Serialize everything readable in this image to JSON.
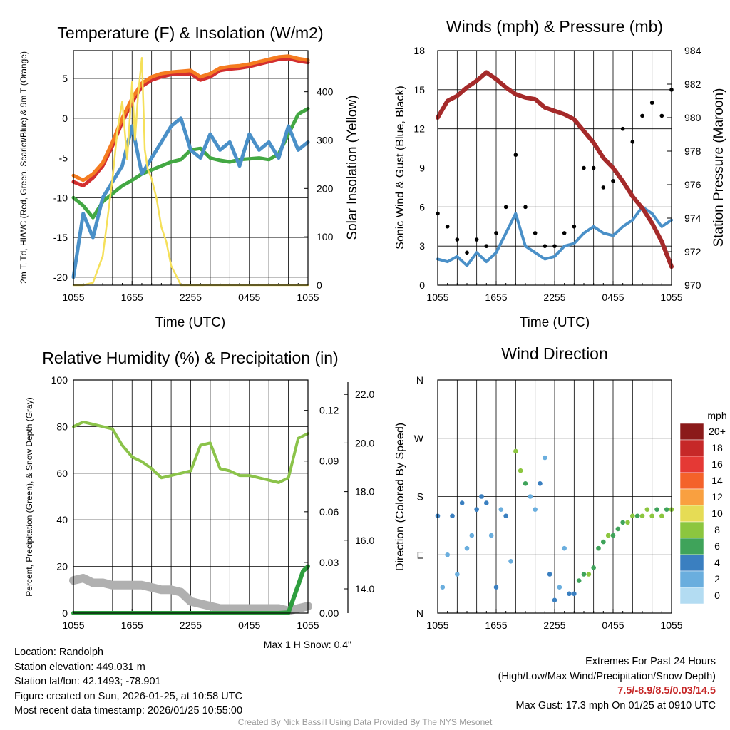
{
  "chart_data": [
    {
      "type": "line",
      "title": "Temperature (F) & Insolation (W/m2)",
      "xlabel": "Time (UTC)",
      "ylabel": "2m T, Td, HI/WC (Red, Green, Scarlet/Blue) & 9m T (Orange)",
      "ylabel_right": "Solar Insolation (Yellow)",
      "x_ticks": [
        "1055",
        "1655",
        "2255",
        "0455",
        "1055"
      ],
      "ylim": [
        -21,
        8.5
      ],
      "y_ticks": [
        -20,
        -15,
        -10,
        -5,
        0,
        5
      ],
      "ylim_right": [
        0,
        485
      ],
      "y_ticks_right": [
        0,
        100,
        200,
        300,
        400
      ],
      "series": [
        {
          "name": "2m Temperature",
          "color": "#d32f2f",
          "x": [
            0,
            1,
            2,
            3,
            4,
            5,
            6,
            7,
            8,
            9,
            10,
            11,
            12,
            13,
            14,
            15,
            16,
            17,
            18,
            19,
            20,
            21,
            22,
            23,
            24
          ],
          "values": [
            -8,
            -8.5,
            -7.5,
            -6,
            -3.5,
            -0.5,
            2,
            4,
            4.8,
            5.2,
            5.5,
            5.5,
            5.6,
            4.8,
            5.2,
            6,
            6.2,
            6.3,
            6.5,
            6.8,
            7.1,
            7.4,
            7.5,
            7.2,
            7.0
          ]
        },
        {
          "name": "9m Temperature",
          "color": "#f57c20",
          "x": [
            0,
            1,
            2,
            3,
            4,
            5,
            6,
            7,
            8,
            9,
            10,
            11,
            12,
            13,
            14,
            15,
            16,
            17,
            18,
            19,
            20,
            21,
            22,
            23,
            24
          ],
          "values": [
            -7.2,
            -7.8,
            -7,
            -5.6,
            -3,
            0,
            2.5,
            4.4,
            5.2,
            5.6,
            5.8,
            5.9,
            6,
            5.2,
            5.6,
            6.3,
            6.5,
            6.6,
            6.8,
            7.1,
            7.4,
            7.7,
            7.8,
            7.5,
            7.3
          ]
        },
        {
          "name": "2m Dewpoint",
          "color": "#43a843",
          "x": [
            0,
            1,
            2,
            3,
            4,
            5,
            6,
            7,
            8,
            9,
            10,
            11,
            12,
            13,
            14,
            15,
            16,
            17,
            18,
            19,
            20,
            21,
            22,
            23,
            24
          ],
          "values": [
            -10,
            -11,
            -12.5,
            -10.5,
            -9.5,
            -8.5,
            -7.8,
            -7,
            -6.5,
            -6,
            -5.5,
            -5.2,
            -4,
            -3.8,
            -5,
            -5.3,
            -5.5,
            -5.2,
            -5.1,
            -5.0,
            -5.2,
            -4.5,
            -2,
            0.5,
            1.2
          ]
        },
        {
          "name": "Wind Chill",
          "color": "#4a90c8",
          "x": [
            0,
            1,
            2,
            3,
            4,
            5,
            6,
            7,
            8,
            9,
            10,
            11,
            12,
            13,
            14,
            15,
            16,
            17,
            18,
            19,
            20,
            21,
            22,
            23,
            24
          ],
          "values": [
            -20,
            -12,
            -15,
            -10,
            -8,
            -6,
            -1,
            -7,
            -5,
            -3,
            -1,
            0,
            -4,
            -5,
            -2,
            -4,
            -3,
            -6,
            -2,
            -4,
            -3,
            -5,
            -1,
            -4,
            -3
          ]
        },
        {
          "name": "Solar Insolation",
          "color": "#f5e05a",
          "axis": "right",
          "x": [
            0,
            1,
            2,
            3,
            3.5,
            4,
            4.5,
            5,
            5.5,
            6,
            6.3,
            6.6,
            7,
            7.3,
            7.6,
            8,
            8.5,
            9,
            9.5,
            10,
            11,
            12,
            13,
            24
          ],
          "values": [
            0,
            0,
            5,
            60,
            140,
            220,
            320,
            380,
            260,
            420,
            300,
            390,
            470,
            280,
            240,
            220,
            180,
            120,
            90,
            40,
            0,
            0,
            0,
            0
          ]
        }
      ]
    },
    {
      "type": "scatter",
      "title": "Winds (mph) & Pressure (mb)",
      "xlabel": "Time (UTC)",
      "ylabel": "Sonic Wind & Gust (Blue, Black)",
      "ylabel_right": "Station Pressure (Maroon)",
      "x_ticks": [
        "1055",
        "1655",
        "2255",
        "0455",
        "1055"
      ],
      "ylim": [
        0,
        18
      ],
      "y_ticks": [
        0,
        3,
        6,
        9,
        12,
        15,
        18
      ],
      "ylim_right": [
        970,
        984
      ],
      "y_ticks_right": [
        970,
        972,
        974,
        976,
        978,
        980,
        982,
        984
      ],
      "series": [
        {
          "name": "Station Pressure",
          "color": "#a52a2a",
          "axis": "right",
          "x": [
            0,
            1,
            2,
            3,
            4,
            5,
            6,
            7,
            8,
            9,
            10,
            11,
            12,
            13,
            14,
            15,
            16,
            17,
            18,
            19,
            20,
            21,
            22,
            23,
            24
          ],
          "values": [
            980,
            981,
            981.3,
            981.8,
            982.2,
            982.7,
            982.3,
            981.8,
            981.4,
            981.2,
            981.1,
            980.6,
            980.4,
            980.2,
            979.9,
            979.2,
            978.5,
            977.6,
            977,
            976.2,
            975.3,
            974.6,
            973.7,
            972.6,
            971.1
          ]
        },
        {
          "name": "Sonic Wind",
          "color": "#4a90c8",
          "x": [
            0,
            1,
            2,
            3,
            4,
            5,
            6,
            7,
            8,
            9,
            10,
            11,
            12,
            13,
            14,
            15,
            16,
            17,
            18,
            19,
            20,
            21,
            22,
            23,
            24
          ],
          "values": [
            2,
            1.8,
            2.2,
            1.5,
            2.5,
            1.8,
            2.5,
            4,
            5.5,
            3,
            2.5,
            2,
            2.2,
            3,
            3.2,
            4,
            4.5,
            4,
            3.8,
            4.5,
            5,
            6,
            5.5,
            4.5,
            5
          ]
        },
        {
          "name": "Gust",
          "color": "#000000",
          "x": [
            0,
            1,
            2,
            3,
            4,
            5,
            6,
            7,
            8,
            9,
            10,
            11,
            12,
            13,
            14,
            15,
            16,
            17,
            18,
            19,
            20,
            21,
            22,
            23,
            24
          ],
          "values": [
            5.5,
            4.5,
            3.5,
            2.5,
            3.5,
            3,
            4,
            6,
            10,
            6,
            4,
            3,
            3,
            4,
            4.5,
            9,
            9,
            7.5,
            8,
            12,
            11,
            13,
            14,
            13,
            15
          ]
        }
      ]
    },
    {
      "type": "line",
      "title": "Relative Humidity (%) & Precipitation (in)",
      "xlabel": "",
      "ylabel": "Percent, Precipitation (Green), & Snow Depth (Gray)",
      "x_ticks": [
        "1055",
        "1655",
        "2255",
        "0455",
        "1055"
      ],
      "ylim": [
        0,
        100
      ],
      "y_ticks": [
        0,
        20,
        40,
        60,
        80,
        100
      ],
      "precip_ticks": [
        "0.00",
        "0.03",
        "0.06",
        "0.09",
        "0.12"
      ],
      "snow_ticks": [
        "14.0",
        "16.0",
        "18.0",
        "20.0",
        "22.0"
      ],
      "snow_note": "Max 1 H Snow: 0.4\"",
      "series": [
        {
          "name": "Relative Humidity",
          "color": "#8bc34a",
          "x": [
            0,
            1,
            2,
            3,
            4,
            5,
            6,
            7,
            8,
            9,
            10,
            11,
            12,
            13,
            14,
            15,
            16,
            17,
            18,
            19,
            20,
            21,
            22,
            23,
            24
          ],
          "values": [
            80,
            82,
            81,
            80,
            79,
            72,
            67,
            65,
            62,
            58,
            59,
            60,
            61,
            72,
            73,
            62,
            61,
            59,
            59,
            58,
            57,
            56,
            58,
            75,
            77
          ]
        },
        {
          "name": "Precipitation",
          "color": "#2e9e3e",
          "x": [
            0,
            20,
            21,
            22,
            23,
            23.5,
            24
          ],
          "values": [
            0,
            0,
            0,
            0.2,
            12,
            18,
            20
          ]
        },
        {
          "name": "Snow Depth",
          "color": "#b0b0b0",
          "x": [
            0,
            1,
            2,
            3,
            4,
            5,
            6,
            7,
            8,
            9,
            10,
            11,
            12,
            13,
            14,
            15,
            16,
            17,
            18,
            19,
            20,
            21,
            22,
            23,
            24
          ],
          "values": [
            14,
            15,
            13,
            13,
            12,
            12,
            12,
            12,
            11,
            10,
            10,
            9,
            5,
            4,
            3,
            2,
            2,
            2,
            2,
            2,
            2,
            2,
            1,
            2,
            3
          ]
        }
      ]
    },
    {
      "type": "scatter",
      "title": "Wind Direction",
      "xlabel": "",
      "ylabel": "Direction (Colored By Speed)",
      "x_ticks": [
        "1055",
        "1655",
        "2255",
        "0455",
        "1055"
      ],
      "y_ticks": [
        "N",
        "E",
        "S",
        "W",
        "N"
      ],
      "ylim": [
        0,
        360
      ],
      "colorbar": {
        "title": "mph",
        "labels": [
          "20+",
          "18",
          "16",
          "14",
          "12",
          "10",
          "8",
          "6",
          "4",
          "2",
          "0"
        ],
        "colors": [
          "#8b1a1a",
          "#c62828",
          "#e53935",
          "#f4622a",
          "#f9a040",
          "#e6dc55",
          "#8cc63f",
          "#3fa35a",
          "#3a7fc0",
          "#6aaede",
          "#b3dcf2"
        ]
      },
      "series": [
        {
          "name": "Direction",
          "x": [
            0,
            0.5,
            1,
            1.5,
            2,
            2.5,
            3,
            3.5,
            4,
            4.5,
            5,
            5.5,
            6,
            6.5,
            7,
            7.5,
            8,
            8.5,
            9,
            9.5,
            10,
            10.5,
            11,
            11.5,
            12,
            12.5,
            13,
            13.5,
            14,
            14.5,
            15,
            15.5,
            16,
            16.5,
            17,
            17.5,
            18,
            18.5,
            19,
            19.5,
            20,
            20.5,
            21,
            21.5,
            22,
            22.5,
            23,
            23.5,
            24
          ],
          "values": [
            150,
            40,
            90,
            150,
            60,
            170,
            100,
            120,
            160,
            180,
            170,
            120,
            40,
            160,
            150,
            80,
            250,
            220,
            200,
            180,
            160,
            200,
            240,
            60,
            20,
            40,
            100,
            30,
            30,
            50,
            60,
            60,
            70,
            100,
            110,
            120,
            120,
            130,
            140,
            140,
            150,
            150,
            150,
            160,
            150,
            160,
            150,
            160,
            160
          ],
          "speeds": [
            3,
            2,
            1,
            4,
            2,
            3,
            2,
            1,
            3,
            4,
            3,
            2,
            4,
            2,
            3,
            1,
            8,
            7,
            5,
            2,
            1,
            3,
            2,
            4,
            3,
            2,
            2,
            3,
            4,
            5,
            6,
            7,
            6,
            5,
            6,
            7,
            6,
            5,
            6,
            7,
            7,
            6,
            7,
            8,
            7,
            6,
            7,
            6,
            7
          ]
        }
      ]
    }
  ],
  "info": {
    "location": "Location: Randolph",
    "elevation": "Station elevation: 449.031 m",
    "latlon": "Station lat/lon: 42.1493; -78.901",
    "created": "Figure created on Sun, 2026-01-25, at 10:58 UTC",
    "recent": "Most recent data timestamp: 2026/01/25 10:55:00"
  },
  "extremes": {
    "title": "Extremes For Past 24 Hours",
    "subtitle": "(High/Low/Max Wind/Precipitation/Snow Depth)",
    "values": "7.5/-8.9/8.5/0.03/14.5",
    "gust": "Max Gust: 17.3 mph On 01/25 at 0910 UTC"
  },
  "credit": "Created By Nick Bassill Using Data Provided By The NYS Mesonet"
}
